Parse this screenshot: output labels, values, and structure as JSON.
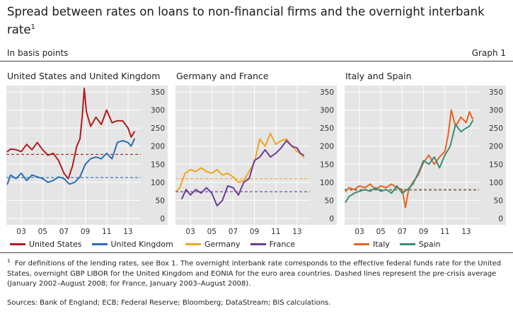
{
  "header": {
    "title": "Spread between rates on loans to non-financial firms and the overnight interbank rate",
    "title_sup": "1",
    "units": "In basis points",
    "graph_label": "Graph 1"
  },
  "footnote": {
    "marker": "1",
    "text": "For definitions of the lending rates, see Box 1. The overnight interbank rate corresponds to the effective federal funds rate for the United States, overnight GBP LIBOR for the United Kingdom and EONIA for the euro area countries. Dashed lines represent the pre-crisis average (January 2002–August 2008; for France, January 2003–August 2008)."
  },
  "sources": "Sources: Bank of England; ECB; Federal Reserve; Bloomberg; DataStream; BIS calculations.",
  "colors": {
    "panel_bg": "#e5e5e5",
    "grid": "#ffffff",
    "United States": "#b31b1b",
    "United Kingdom": "#2a6db5",
    "Germany": "#f2a51d",
    "France": "#6a3d9a",
    "Italy": "#e8641e",
    "Spain": "#3b8c74"
  },
  "chart_data": [
    {
      "type": "line",
      "title": "United States and United Kingdom",
      "x_ticks": [
        "03",
        "05",
        "07",
        "09",
        "11",
        "13"
      ],
      "x_tick_years": [
        2003,
        2005,
        2007,
        2009,
        2011,
        2013
      ],
      "xlim": [
        2001.6,
        2014.2
      ],
      "ylim": [
        0,
        350
      ],
      "y_ticks": [
        0,
        50,
        100,
        150,
        200,
        250,
        300,
        350
      ],
      "series": [
        {
          "name": "United States",
          "x": [
            2001.7,
            2002.0,
            2002.5,
            2003.0,
            2003.5,
            2004.0,
            2004.5,
            2005.0,
            2005.5,
            2006.0,
            2006.5,
            2007.0,
            2007.4,
            2007.8,
            2008.2,
            2008.5,
            2008.7,
            2008.9,
            2009.1,
            2009.5,
            2010.0,
            2010.5,
            2011.0,
            2011.5,
            2012.0,
            2012.5,
            2013.0,
            2013.3,
            2013.6
          ],
          "values": [
            185,
            192,
            190,
            185,
            205,
            190,
            210,
            190,
            175,
            180,
            160,
            125,
            110,
            145,
            200,
            220,
            280,
            360,
            295,
            255,
            280,
            260,
            300,
            265,
            270,
            270,
            250,
            225,
            240
          ],
          "average": 177
        },
        {
          "name": "United Kingdom",
          "x": [
            2001.7,
            2002.0,
            2002.5,
            2003.0,
            2003.5,
            2004.0,
            2004.5,
            2005.0,
            2005.5,
            2006.0,
            2006.5,
            2007.0,
            2007.5,
            2008.0,
            2008.5,
            2009.0,
            2009.5,
            2010.0,
            2010.5,
            2011.0,
            2011.5,
            2012.0,
            2012.5,
            2013.0,
            2013.3,
            2013.6
          ],
          "values": [
            95,
            120,
            110,
            125,
            105,
            120,
            115,
            110,
            100,
            105,
            115,
            110,
            95,
            100,
            115,
            150,
            165,
            170,
            165,
            180,
            165,
            210,
            215,
            210,
            200,
            220
          ],
          "average": 113
        }
      ]
    },
    {
      "type": "line",
      "title": "Germany and France",
      "x_ticks": [
        "03",
        "05",
        "07",
        "09",
        "11",
        "13"
      ],
      "x_tick_years": [
        2003,
        2005,
        2007,
        2009,
        2011,
        2013
      ],
      "xlim": [
        2001.6,
        2014.2
      ],
      "ylim": [
        0,
        350
      ],
      "y_ticks": [
        0,
        50,
        100,
        150,
        200,
        250,
        300,
        350
      ],
      "series": [
        {
          "name": "Germany",
          "x": [
            2001.7,
            2002.0,
            2002.5,
            2003.0,
            2003.5,
            2004.0,
            2004.5,
            2005.0,
            2005.5,
            2006.0,
            2006.5,
            2007.0,
            2007.5,
            2008.0,
            2008.5,
            2009.0,
            2009.5,
            2010.0,
            2010.5,
            2011.0,
            2011.5,
            2012.0,
            2012.5,
            2013.0,
            2013.3,
            2013.6
          ],
          "values": [
            75,
            85,
            125,
            135,
            130,
            140,
            130,
            125,
            135,
            120,
            125,
            115,
            100,
            105,
            130,
            155,
            220,
            200,
            235,
            205,
            215,
            220,
            200,
            185,
            180,
            170
          ],
          "average": 110
        },
        {
          "name": "France",
          "x": [
            2002.2,
            2002.6,
            2003.0,
            2003.5,
            2004.0,
            2004.5,
            2005.0,
            2005.5,
            2006.0,
            2006.5,
            2007.0,
            2007.5,
            2008.0,
            2008.5,
            2009.0,
            2009.5,
            2010.0,
            2010.5,
            2011.0,
            2011.5,
            2012.0,
            2012.5,
            2013.0,
            2013.3,
            2013.6
          ],
          "values": [
            55,
            80,
            65,
            80,
            70,
            85,
            70,
            35,
            50,
            90,
            85,
            65,
            100,
            110,
            160,
            170,
            190,
            170,
            180,
            195,
            215,
            200,
            195,
            180,
            175
          ],
          "average": 74
        }
      ]
    },
    {
      "type": "line",
      "title": "Italy and Spain",
      "x_ticks": [
        "03",
        "05",
        "07",
        "09",
        "11",
        "13"
      ],
      "x_tick_years": [
        2003,
        2005,
        2007,
        2009,
        2011,
        2013
      ],
      "xlim": [
        2001.6,
        2014.2
      ],
      "ylim": [
        0,
        350
      ],
      "y_ticks": [
        0,
        50,
        100,
        150,
        200,
        250,
        300,
        350
      ],
      "series": [
        {
          "name": "Italy",
          "x": [
            2001.7,
            2002.0,
            2002.5,
            2003.0,
            2003.5,
            2004.0,
            2004.5,
            2005.0,
            2005.5,
            2006.0,
            2006.5,
            2007.0,
            2007.3,
            2007.6,
            2008.0,
            2008.5,
            2009.0,
            2009.5,
            2010.0,
            2010.5,
            2011.0,
            2011.3,
            2011.6,
            2012.0,
            2012.5,
            2013.0,
            2013.3,
            2013.6
          ],
          "values": [
            75,
            85,
            80,
            90,
            85,
            95,
            80,
            90,
            85,
            95,
            85,
            80,
            30,
            80,
            100,
            120,
            155,
            175,
            150,
            170,
            185,
            230,
            300,
            255,
            280,
            265,
            295,
            275
          ],
          "average": 78
        },
        {
          "name": "Spain",
          "x": [
            2001.7,
            2002.0,
            2002.5,
            2003.0,
            2003.5,
            2004.0,
            2004.5,
            2005.0,
            2005.5,
            2006.0,
            2006.5,
            2007.0,
            2007.5,
            2008.0,
            2008.5,
            2009.0,
            2009.5,
            2010.0,
            2010.5,
            2011.0,
            2011.5,
            2012.0,
            2012.5,
            2013.0,
            2013.3,
            2013.6
          ],
          "values": [
            45,
            60,
            70,
            75,
            80,
            75,
            85,
            75,
            80,
            70,
            90,
            70,
            80,
            95,
            125,
            160,
            150,
            170,
            140,
            175,
            200,
            260,
            240,
            250,
            255,
            270
          ],
          "average": 80
        }
      ]
    }
  ]
}
